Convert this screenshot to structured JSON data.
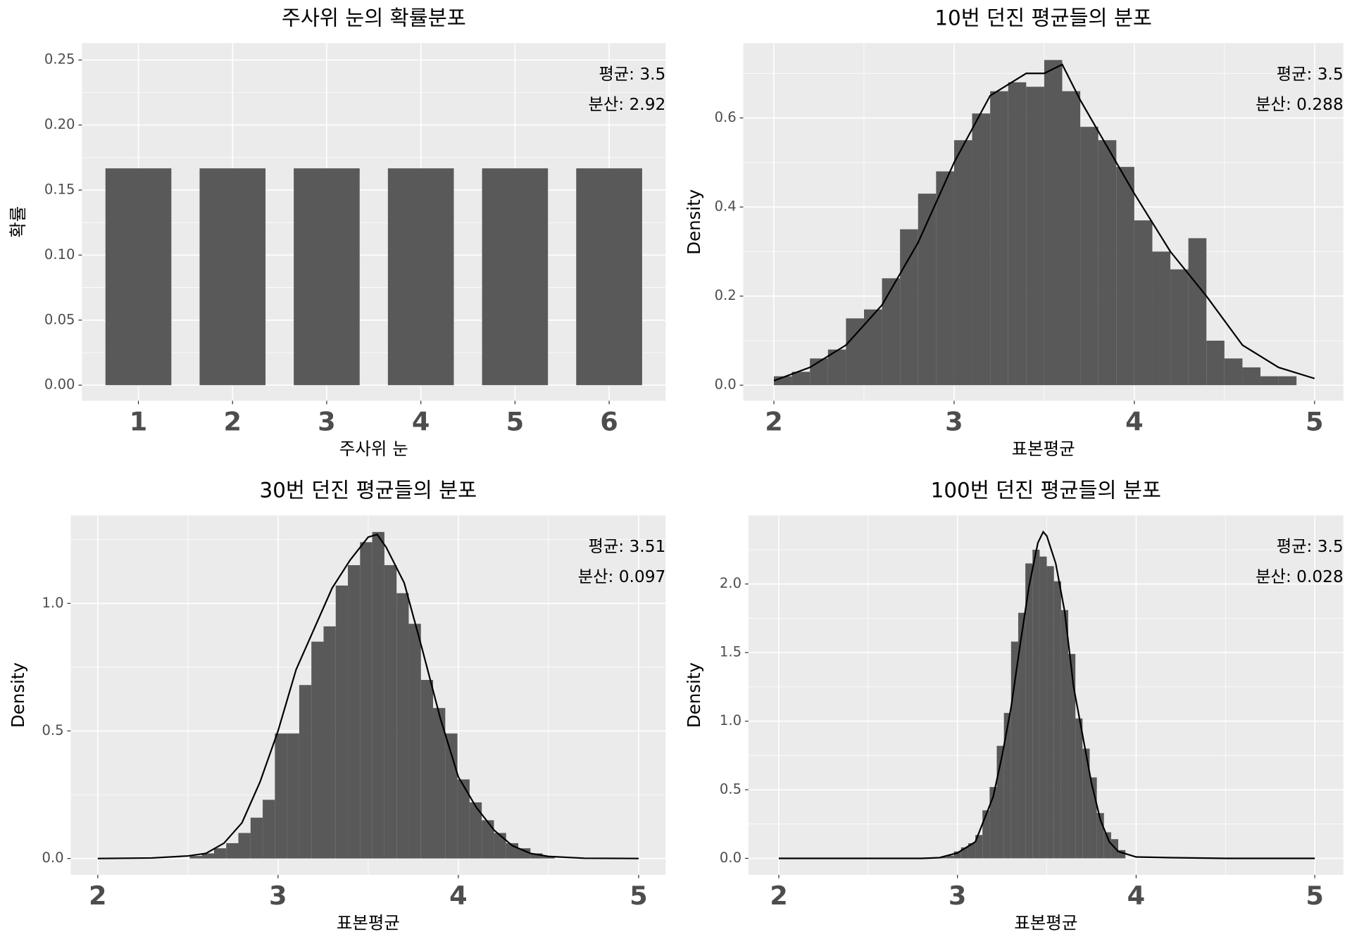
{
  "chart_data": [
    {
      "type": "bar",
      "title": "주사위 눈의 확률분포",
      "x_label": "주사위 눈",
      "y_label": "확률",
      "categories": [
        "1",
        "2",
        "3",
        "4",
        "5",
        "6"
      ],
      "values": [
        0.1667,
        0.1667,
        0.1667,
        0.1667,
        0.1667,
        0.1667
      ],
      "color": "#595959",
      "ylim": [
        -0.012,
        0.263
      ],
      "yticks": [
        {
          "value": 0,
          "label": "0.00"
        },
        0.05,
        {
          "value": 0.1,
          "label": "0.10"
        },
        0.15,
        {
          "value": 0.2,
          "label": "0.20"
        },
        0.25
      ],
      "grid": true,
      "annotations": [
        "평균: 3.5",
        "분산: 2.92"
      ]
    },
    {
      "type": "histogram",
      "title": "10번 던진 평균들의 분포",
      "x_label": "표본평균",
      "y_label": "Density",
      "bins": [
        2.0,
        2.1,
        2.2,
        2.3,
        2.4,
        2.5,
        2.6,
        2.7,
        2.8,
        2.9,
        3.0,
        3.1,
        3.2,
        3.3,
        3.4,
        3.5,
        3.6,
        3.7,
        3.8,
        3.9,
        4.0,
        4.1,
        4.2,
        4.3,
        4.4,
        4.5,
        4.6,
        4.7,
        4.8,
        4.9
      ],
      "values": [
        0.02,
        0.03,
        0.06,
        0.08,
        0.15,
        0.17,
        0.24,
        0.35,
        0.43,
        0.48,
        0.55,
        0.61,
        0.66,
        0.68,
        0.67,
        0.73,
        0.66,
        0.58,
        0.55,
        0.49,
        0.37,
        0.3,
        0.26,
        0.33,
        0.1,
        0.06,
        0.04,
        0.02,
        0.02
      ],
      "color": "#595959",
      "line_color": "#000000",
      "density": {
        "x": [
          2.0,
          2.2,
          2.4,
          2.6,
          2.8,
          3.0,
          3.2,
          3.4,
          3.5,
          3.6,
          3.7,
          3.8,
          4.0,
          4.2,
          4.4,
          4.6,
          4.8,
          5.0
        ],
        "y": [
          0.01,
          0.04,
          0.09,
          0.18,
          0.32,
          0.5,
          0.65,
          0.7,
          0.7,
          0.72,
          0.64,
          0.57,
          0.43,
          0.3,
          0.2,
          0.09,
          0.04,
          0.015
        ]
      },
      "xlim": [
        1.83,
        5.16
      ],
      "xticks": [
        2,
        3,
        4,
        5
      ],
      "ylim": [
        -0.035,
        0.768
      ],
      "yticks": [
        {
          "value": 0,
          "label": "0.0"
        },
        0.2,
        0.4,
        0.6
      ],
      "grid": true,
      "annotations": [
        "평균: 3.5",
        "분산: 0.288"
      ]
    },
    {
      "type": "histogram",
      "title": "30번 던진 평균들의 분포",
      "x_label": "표본평균",
      "y_label": "Density",
      "bins": [
        2.51,
        2.5775,
        2.645,
        2.7125,
        2.78,
        2.8475,
        2.915,
        2.9825,
        3.05,
        3.1175,
        3.185,
        3.2525,
        3.32,
        3.3875,
        3.455,
        3.5225,
        3.59,
        3.6575,
        3.725,
        3.7925,
        3.86,
        3.9275,
        3.995,
        4.0625,
        4.13,
        4.1975,
        4.265,
        4.3325,
        4.4,
        4.4675,
        4.535
      ],
      "values": [
        0.01,
        0.02,
        0.04,
        0.06,
        0.1,
        0.16,
        0.23,
        0.49,
        0.49,
        0.68,
        0.85,
        0.91,
        1.07,
        1.15,
        1.24,
        1.28,
        1.15,
        1.04,
        0.92,
        0.7,
        0.59,
        0.49,
        0.31,
        0.22,
        0.15,
        0.1,
        0.06,
        0.04,
        0.02,
        0.01
      ],
      "color": "#595959",
      "line_color": "#000000",
      "density": {
        "x": [
          2.0,
          2.3,
          2.5,
          2.6,
          2.7,
          2.8,
          2.9,
          3.0,
          3.1,
          3.2,
          3.3,
          3.4,
          3.5,
          3.55,
          3.6,
          3.7,
          3.8,
          3.9,
          4.0,
          4.1,
          4.2,
          4.3,
          4.4,
          4.5,
          4.7,
          5.0
        ],
        "y": [
          0,
          0.002,
          0.01,
          0.02,
          0.06,
          0.14,
          0.3,
          0.5,
          0.74,
          0.9,
          1.06,
          1.17,
          1.26,
          1.27,
          1.22,
          1.08,
          0.82,
          0.55,
          0.32,
          0.2,
          0.11,
          0.05,
          0.02,
          0.008,
          0.001,
          0
        ]
      },
      "xlim": [
        1.85,
        5.15
      ],
      "xticks": [
        2,
        3,
        4,
        5
      ],
      "ylim": [
        -0.064,
        1.345
      ],
      "yticks": [
        {
          "value": 0,
          "label": "0.0"
        },
        0.5,
        {
          "value": 1,
          "label": "1.0"
        }
      ],
      "grid": true,
      "annotations": [
        "평균: 3.51",
        "분산: 0.097"
      ]
    },
    {
      "type": "histogram",
      "title": "100번 던진 평균들의 분포",
      "x_label": "표본평균",
      "y_label": "Density",
      "bins": [
        2.9,
        2.94,
        2.98,
        3.02,
        3.06,
        3.1,
        3.14,
        3.18,
        3.22,
        3.26,
        3.3,
        3.34,
        3.38,
        3.42,
        3.46,
        3.5,
        3.54,
        3.58,
        3.62,
        3.66,
        3.7,
        3.74,
        3.78,
        3.82,
        3.86,
        3.9,
        3.94
      ],
      "values": [
        0.01,
        0.02,
        0.05,
        0.08,
        0.11,
        0.17,
        0.35,
        0.52,
        0.82,
        1.06,
        1.58,
        1.79,
        2.15,
        2.25,
        2.2,
        2.13,
        2.02,
        1.81,
        1.49,
        1.02,
        0.8,
        0.59,
        0.33,
        0.19,
        0.14,
        0.06
      ],
      "color": "#595959",
      "line_color": "#000000",
      "density": {
        "x": [
          2.0,
          2.8,
          2.9,
          3.0,
          3.1,
          3.2,
          3.25,
          3.3,
          3.35,
          3.4,
          3.45,
          3.48,
          3.5,
          3.55,
          3.6,
          3.65,
          3.7,
          3.75,
          3.8,
          3.85,
          3.9,
          4.0,
          4.2,
          4.5,
          5.0
        ],
        "y": [
          0,
          0,
          0.005,
          0.04,
          0.12,
          0.45,
          0.75,
          1.1,
          1.55,
          1.98,
          2.3,
          2.38,
          2.35,
          2.15,
          1.8,
          1.25,
          0.9,
          0.55,
          0.28,
          0.12,
          0.05,
          0.01,
          0.005,
          0,
          0
        ]
      },
      "xlim": [
        1.83,
        5.16
      ],
      "xticks": [
        2,
        3,
        4,
        5
      ],
      "ylim": [
        -0.12,
        2.5
      ],
      "yticks": [
        {
          "value": 0,
          "label": "0.0"
        },
        0.5,
        {
          "value": 1,
          "label": "1.0"
        },
        1.5,
        {
          "value": 2,
          "label": "2.0"
        }
      ],
      "grid": true,
      "annotations": [
        "평균: 3.5",
        "분산: 0.028"
      ]
    }
  ]
}
